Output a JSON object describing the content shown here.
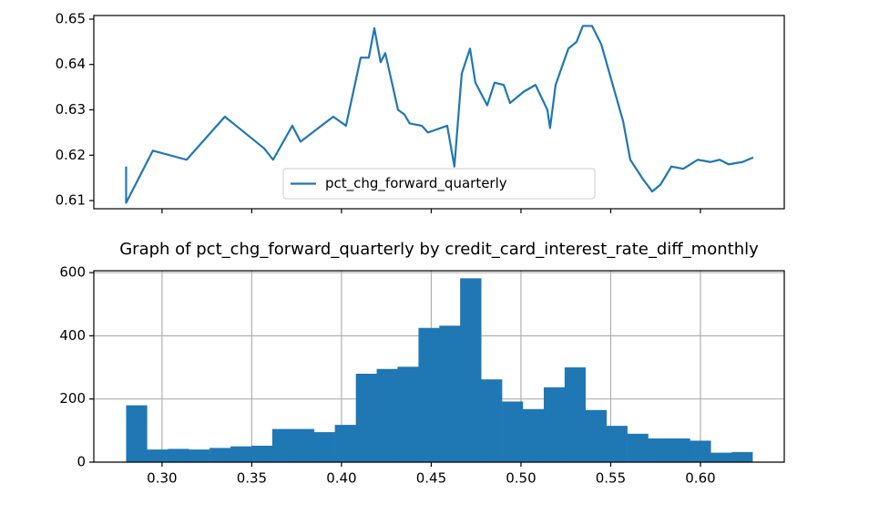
{
  "chart_data": [
    {
      "type": "line",
      "x": [
        0.28,
        0.28,
        0.2949,
        0.3137,
        0.335,
        0.3569,
        0.3619,
        0.3726,
        0.3772,
        0.3954,
        0.4025,
        0.4107,
        0.4152,
        0.4183,
        0.4218,
        0.4244,
        0.4315,
        0.435,
        0.438,
        0.4447,
        0.4482,
        0.4589,
        0.4629,
        0.467,
        0.4716,
        0.4746,
        0.4812,
        0.4853,
        0.4904,
        0.4939,
        0.5015,
        0.5081,
        0.5147,
        0.5162,
        0.5193,
        0.5264,
        0.531,
        0.5345,
        0.5396,
        0.5447,
        0.5508,
        0.5569,
        0.5609,
        0.5675,
        0.5731,
        0.5777,
        0.5838,
        0.5904,
        0.5985,
        0.6056,
        0.6107,
        0.6157,
        0.6234,
        0.6294
      ],
      "series": [
        {
          "name": "pct_chg_forward_quarterly",
          "color": "#1f77b4",
          "values": [
            0.6175,
            0.6095,
            0.621,
            0.619,
            0.6285,
            0.6215,
            0.619,
            0.6265,
            0.623,
            0.6285,
            0.6265,
            0.6415,
            0.6415,
            0.648,
            0.6405,
            0.6425,
            0.63,
            0.629,
            0.627,
            0.6265,
            0.625,
            0.6265,
            0.6175,
            0.638,
            0.6435,
            0.636,
            0.631,
            0.636,
            0.6355,
            0.6315,
            0.634,
            0.6355,
            0.63,
            0.626,
            0.6355,
            0.6435,
            0.645,
            0.6485,
            0.6485,
            0.6445,
            0.636,
            0.6275,
            0.619,
            0.615,
            0.612,
            0.6135,
            0.6175,
            0.617,
            0.619,
            0.6185,
            0.619,
            0.618,
            0.6185,
            0.6195
          ]
        }
      ],
      "xlim": [
        0.262,
        0.6467
      ],
      "xticks": [
        0.3,
        0.35,
        0.4,
        0.45,
        0.5,
        0.55,
        0.6
      ],
      "ylim": [
        0.6082,
        0.6508
      ],
      "yticks": [
        0.61,
        0.62,
        0.63,
        0.64,
        0.65
      ],
      "legend": "lower center"
    },
    {
      "type": "histogram",
      "title": "Graph of pct_chg_forward_quarterly by credit_card_interest_rate_diff_monthly",
      "bins": [
        0.28,
        0.2916,
        0.3033,
        0.3149,
        0.3265,
        0.3382,
        0.3498,
        0.3614,
        0.3731,
        0.3847,
        0.3963,
        0.408,
        0.4196,
        0.4312,
        0.4429,
        0.4545,
        0.4661,
        0.4778,
        0.4894,
        0.501,
        0.5127,
        0.5243,
        0.5359,
        0.5476,
        0.5592,
        0.5708,
        0.5825,
        0.5941,
        0.6057,
        0.6174,
        0.629
      ],
      "values": [
        180,
        40,
        42,
        40,
        45,
        50,
        52,
        105,
        105,
        95,
        118,
        280,
        295,
        302,
        425,
        432,
        582,
        262,
        192,
        168,
        237,
        300,
        165,
        115,
        90,
        75,
        75,
        68,
        30,
        32
      ],
      "color": "#1f77b4",
      "xlim": [
        0.262,
        0.6467
      ],
      "xticks": [
        {
          "value": 0.3,
          "label": "0.30"
        },
        {
          "value": 0.35,
          "label": "0.35"
        },
        {
          "value": 0.4,
          "label": "0.40"
        },
        {
          "value": 0.45,
          "label": "0.45"
        },
        {
          "value": 0.5,
          "label": "0.50"
        },
        {
          "value": 0.55,
          "label": "0.55"
        },
        {
          "value": 0.6,
          "label": "0.60"
        }
      ],
      "ylim": [
        0,
        606
      ],
      "yticks": [
        0,
        200,
        400,
        600
      ],
      "grid": true
    }
  ]
}
